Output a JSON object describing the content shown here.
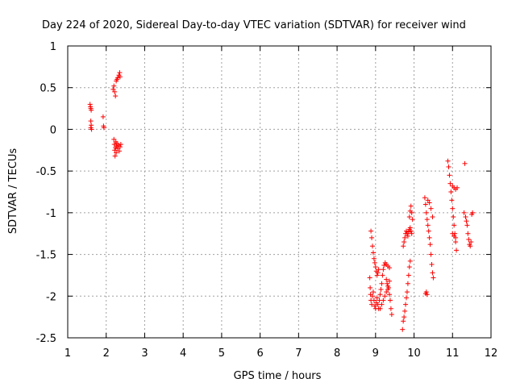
{
  "chart_data": {
    "type": "scatter",
    "title": "Day 224 of 2020, Sidereal Day-to-day VTEC variation (SDTVAR) for receiver wind",
    "xlabel": "GPS time / hours",
    "ylabel": "SDTVAR / TECUs",
    "xlim": [
      1,
      12
    ],
    "ylim": [
      -2.5,
      1
    ],
    "xticks": [
      "1",
      "2",
      "3",
      "4",
      "5",
      "6",
      "7",
      "8",
      "9",
      "10",
      "11",
      "12"
    ],
    "yticks": [
      "1",
      "0.5",
      "0",
      "-0.5",
      "-1",
      "-1.5",
      "-2",
      "-2.5"
    ],
    "grid": true,
    "marker": "+",
    "color": "#ff0000",
    "series": [
      {
        "name": "SDTVAR",
        "points": [
          [
            1.58,
            0.3
          ],
          [
            1.59,
            0.27
          ],
          [
            1.6,
            0.25
          ],
          [
            1.61,
            0.23
          ],
          [
            1.6,
            0.1
          ],
          [
            1.61,
            0.05
          ],
          [
            1.6,
            0.02
          ],
          [
            1.62,
            0.0
          ],
          [
            1.92,
            0.15
          ],
          [
            1.93,
            0.04
          ],
          [
            1.94,
            0.02
          ],
          [
            2.18,
            0.48
          ],
          [
            2.2,
            0.52
          ],
          [
            2.22,
            0.45
          ],
          [
            2.24,
            0.4
          ],
          [
            2.26,
            0.58
          ],
          [
            2.28,
            0.6
          ],
          [
            2.3,
            0.62
          ],
          [
            2.33,
            0.65
          ],
          [
            2.35,
            0.68
          ],
          [
            2.36,
            0.63
          ],
          [
            2.2,
            -0.12
          ],
          [
            2.21,
            -0.18
          ],
          [
            2.22,
            -0.25
          ],
          [
            2.23,
            -0.32
          ],
          [
            2.24,
            -0.22
          ],
          [
            2.25,
            -0.15
          ],
          [
            2.26,
            -0.28
          ],
          [
            2.27,
            -0.2
          ],
          [
            2.28,
            -0.17
          ],
          [
            2.3,
            -0.23
          ],
          [
            2.32,
            -0.19
          ],
          [
            2.34,
            -0.26
          ],
          [
            2.36,
            -0.21
          ],
          [
            2.38,
            -0.18
          ],
          [
            8.88,
            -1.22
          ],
          [
            8.9,
            -1.3
          ],
          [
            8.92,
            -1.4
          ],
          [
            8.94,
            -1.48
          ],
          [
            8.96,
            -1.55
          ],
          [
            8.98,
            -1.6
          ],
          [
            9.0,
            -1.65
          ],
          [
            9.02,
            -1.7
          ],
          [
            9.04,
            -1.75
          ],
          [
            9.06,
            -1.72
          ],
          [
            9.08,
            -1.68
          ],
          [
            8.85,
            -1.78
          ],
          [
            8.86,
            -1.9
          ],
          [
            8.87,
            -1.98
          ],
          [
            8.88,
            -2.05
          ],
          [
            8.9,
            -2.1
          ],
          [
            8.92,
            -2.0
          ],
          [
            8.94,
            -1.95
          ],
          [
            8.96,
            -2.05
          ],
          [
            8.98,
            -2.12
          ],
          [
            9.0,
            -2.15
          ],
          [
            9.02,
            -2.08
          ],
          [
            9.04,
            -2.02
          ],
          [
            9.06,
            -2.1
          ],
          [
            9.08,
            -2.15
          ],
          [
            9.1,
            -2.05
          ],
          [
            9.12,
            -1.98
          ],
          [
            9.14,
            -1.92
          ],
          [
            9.16,
            -1.85
          ],
          [
            9.18,
            -1.75
          ],
          [
            9.2,
            -1.68
          ],
          [
            9.22,
            -1.63
          ],
          [
            9.25,
            -1.6
          ],
          [
            9.28,
            -1.62
          ],
          [
            9.32,
            -1.64
          ],
          [
            9.36,
            -1.66
          ],
          [
            9.12,
            -2.15
          ],
          [
            9.16,
            -2.1
          ],
          [
            9.2,
            -2.05
          ],
          [
            9.24,
            -2.0
          ],
          [
            9.28,
            -1.95
          ],
          [
            9.32,
            -1.92
          ],
          [
            9.36,
            -1.98
          ],
          [
            9.38,
            -2.05
          ],
          [
            9.4,
            -2.15
          ],
          [
            9.42,
            -2.22
          ],
          [
            9.28,
            -1.8
          ],
          [
            9.3,
            -1.85
          ],
          [
            9.32,
            -1.88
          ],
          [
            9.34,
            -1.9
          ],
          [
            9.36,
            -1.82
          ],
          [
            9.7,
            -2.4
          ],
          [
            9.72,
            -2.3
          ],
          [
            9.74,
            -2.25
          ],
          [
            9.76,
            -2.18
          ],
          [
            9.78,
            -2.1
          ],
          [
            9.8,
            -2.02
          ],
          [
            9.82,
            -1.95
          ],
          [
            9.84,
            -1.85
          ],
          [
            9.86,
            -1.75
          ],
          [
            9.88,
            -1.65
          ],
          [
            9.9,
            -1.58
          ],
          [
            9.72,
            -1.4
          ],
          [
            9.74,
            -1.35
          ],
          [
            9.76,
            -1.3
          ],
          [
            9.78,
            -1.25
          ],
          [
            9.8,
            -1.22
          ],
          [
            9.82,
            -1.25
          ],
          [
            9.84,
            -1.28
          ],
          [
            9.86,
            -1.23
          ],
          [
            9.88,
            -1.2
          ],
          [
            9.9,
            -1.18
          ],
          [
            9.92,
            -1.22
          ],
          [
            9.94,
            -1.25
          ],
          [
            9.88,
            -1.05
          ],
          [
            9.9,
            -0.98
          ],
          [
            9.92,
            -0.92
          ],
          [
            9.94,
            -1.0
          ],
          [
            9.96,
            -1.08
          ],
          [
            10.28,
            -0.82
          ],
          [
            10.3,
            -0.9
          ],
          [
            10.32,
            -1.0
          ],
          [
            10.34,
            -1.08
          ],
          [
            10.36,
            -1.15
          ],
          [
            10.38,
            -1.22
          ],
          [
            10.4,
            -1.3
          ],
          [
            10.42,
            -1.38
          ],
          [
            10.44,
            -1.5
          ],
          [
            10.46,
            -1.62
          ],
          [
            10.48,
            -1.72
          ],
          [
            10.5,
            -1.78
          ],
          [
            10.36,
            -0.85
          ],
          [
            10.4,
            -0.88
          ],
          [
            10.44,
            -0.95
          ],
          [
            10.48,
            -1.05
          ],
          [
            10.3,
            -1.97
          ],
          [
            10.32,
            -1.95
          ],
          [
            10.34,
            -1.98
          ],
          [
            10.88,
            -0.38
          ],
          [
            10.9,
            -0.45
          ],
          [
            10.92,
            -0.55
          ],
          [
            10.94,
            -0.65
          ],
          [
            10.96,
            -0.75
          ],
          [
            10.98,
            -0.85
          ],
          [
            11.0,
            -0.95
          ],
          [
            11.02,
            -1.05
          ],
          [
            11.04,
            -1.15
          ],
          [
            11.06,
            -1.25
          ],
          [
            11.08,
            -1.35
          ],
          [
            11.1,
            -1.45
          ],
          [
            11.0,
            -0.68
          ],
          [
            11.04,
            -0.7
          ],
          [
            11.08,
            -0.72
          ],
          [
            11.12,
            -0.7
          ],
          [
            11.0,
            -1.25
          ],
          [
            11.04,
            -1.28
          ],
          [
            11.08,
            -1.3
          ],
          [
            11.32,
            -0.41
          ],
          [
            11.3,
            -1.0
          ],
          [
            11.34,
            -1.05
          ],
          [
            11.36,
            -1.1
          ],
          [
            11.38,
            -1.15
          ],
          [
            11.4,
            -1.25
          ],
          [
            11.42,
            -1.32
          ],
          [
            11.44,
            -1.38
          ],
          [
            11.46,
            -1.4
          ],
          [
            11.48,
            -1.35
          ],
          [
            11.5,
            -1.02
          ],
          [
            11.52,
            -1.0
          ]
        ]
      }
    ]
  }
}
